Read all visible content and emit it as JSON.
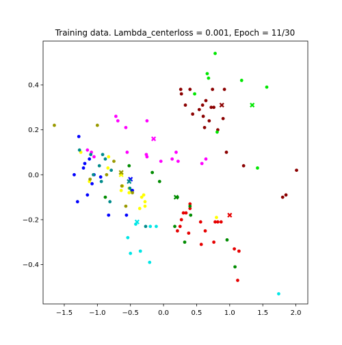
{
  "chart_data": {
    "type": "scatter",
    "title": "Training data. Lambda_centerloss = 0.001, Epoch = 11/30",
    "xlabel": "",
    "ylabel": "",
    "xlim": [
      -1.82,
      2.18
    ],
    "ylim": [
      -0.575,
      0.595
    ],
    "xticks": [
      -1.5,
      -1.0,
      -0.5,
      0.0,
      0.5,
      1.0,
      1.5,
      2.0
    ],
    "xtick_labels": [
      "−1.5",
      "−1.0",
      "−0.5",
      "0.0",
      "0.5",
      "1.0",
      "1.5",
      "2.0"
    ],
    "yticks": [
      -0.4,
      -0.2,
      0.0,
      0.2,
      0.4
    ],
    "ytick_labels": [
      "−0.4",
      "−0.2",
      "0.0",
      "0.2",
      "0.4"
    ],
    "grid": false,
    "series": [
      {
        "color": "#8b0000",
        "points": [
          [
            0.26,
            0.38
          ],
          [
            0.27,
            0.36
          ],
          [
            0.33,
            0.31
          ],
          [
            0.4,
            0.38
          ],
          [
            0.44,
            0.27
          ],
          [
            0.54,
            0.29
          ],
          [
            0.59,
            0.31
          ],
          [
            0.6,
            0.26
          ],
          [
            0.62,
            0.21
          ],
          [
            0.64,
            0.33
          ],
          [
            0.69,
            0.24
          ],
          [
            0.72,
            0.3
          ],
          [
            0.74,
            0.38
          ],
          [
            0.76,
            0.3
          ],
          [
            0.82,
            0.2
          ],
          [
            0.9,
            0.25
          ],
          [
            0.92,
            0.38
          ],
          [
            0.95,
            0.1
          ],
          [
            1.21,
            0.04
          ],
          [
            1.8,
            -0.1
          ],
          [
            1.85,
            -0.09
          ],
          [
            2.01,
            0.02
          ]
        ],
        "center": [
          0.88,
          0.31
        ]
      },
      {
        "color": "#00e600",
        "points": [
          [
            0.47,
            0.36
          ],
          [
            0.66,
            0.45
          ],
          [
            0.68,
            0.43
          ],
          [
            0.78,
            0.54
          ],
          [
            0.81,
            0.19
          ],
          [
            1.18,
            0.42
          ],
          [
            1.42,
            0.03
          ],
          [
            1.56,
            0.39
          ]
        ],
        "center": [
          1.34,
          0.31
        ]
      },
      {
        "color": "#e60000",
        "points": [
          [
            0.3,
            -0.17
          ],
          [
            0.34,
            -0.17
          ],
          [
            0.27,
            -0.2
          ],
          [
            0.25,
            -0.23
          ],
          [
            0.21,
            -0.25
          ],
          [
            0.38,
            -0.26
          ],
          [
            0.4,
            -0.13
          ],
          [
            0.4,
            -0.15
          ],
          [
            0.56,
            -0.21
          ],
          [
            0.57,
            -0.31
          ],
          [
            0.63,
            -0.25
          ],
          [
            0.78,
            -0.21
          ],
          [
            0.82,
            -0.21
          ],
          [
            0.87,
            -0.21
          ],
          [
            0.76,
            -0.3
          ],
          [
            1.07,
            -0.33
          ],
          [
            1.14,
            -0.34
          ],
          [
            1.12,
            -0.47
          ]
        ],
        "center": [
          1.0,
          -0.18
        ]
      },
      {
        "color": "#008b00",
        "points": [
          [
            -0.88,
            -0.1
          ],
          [
            -0.52,
            0.04
          ],
          [
            -0.48,
            -0.07
          ],
          [
            -0.17,
            0.01
          ],
          [
            -0.06,
            -0.03
          ],
          [
            0.17,
            -0.23
          ],
          [
            0.21,
            -0.1
          ],
          [
            0.32,
            -0.3
          ],
          [
            0.4,
            -0.14
          ],
          [
            0.41,
            -0.18
          ],
          [
            0.96,
            -0.29
          ],
          [
            1.08,
            -0.41
          ]
        ],
        "center": [
          0.19,
          -0.1
        ]
      },
      {
        "color": "#ff00ff",
        "points": [
          [
            -1.15,
            0.11
          ],
          [
            -1.09,
            0.1
          ],
          [
            -1.05,
            0.08
          ],
          [
            -0.72,
            0.26
          ],
          [
            -0.69,
            0.24
          ],
          [
            -0.57,
            0.21
          ],
          [
            -0.55,
            0.1
          ],
          [
            -0.25,
            0.24
          ],
          [
            -0.26,
            0.09
          ],
          [
            -0.25,
            0.08
          ],
          [
            -0.04,
            0.06
          ],
          [
            0.13,
            0.07
          ],
          [
            0.19,
            0.1
          ],
          [
            0.22,
            0.06
          ],
          [
            0.58,
            0.05
          ],
          [
            0.64,
            0.07
          ]
        ],
        "center": [
          -0.15,
          0.16
        ]
      },
      {
        "color": "#0000ff",
        "points": [
          [
            -1.35,
            0.0
          ],
          [
            -1.3,
            -0.12
          ],
          [
            -1.28,
            0.17
          ],
          [
            -1.21,
            0.03
          ],
          [
            -1.19,
            0.05
          ],
          [
            -1.15,
            -0.09
          ],
          [
            -1.12,
            0.07
          ],
          [
            -1.05,
            0.0
          ],
          [
            -1.08,
            -0.04
          ],
          [
            -0.95,
            -0.01
          ],
          [
            -0.83,
            -0.18
          ],
          [
            -0.56,
            -0.18
          ],
          [
            -0.47,
            -0.07
          ]
        ],
        "center": [
          -0.5,
          -0.02
        ]
      },
      {
        "color": "#ffff00",
        "points": [
          [
            -1.25,
            0.1
          ],
          [
            -1.12,
            -0.03
          ],
          [
            -0.83,
            0.08
          ],
          [
            -0.84,
            0.03
          ],
          [
            -0.64,
            -0.07
          ],
          [
            -0.62,
            -0.05
          ],
          [
            -0.52,
            -0.06
          ],
          [
            -0.52,
            -0.08
          ],
          [
            -0.36,
            -0.15
          ],
          [
            -0.33,
            -0.1
          ],
          [
            -0.3,
            -0.09
          ],
          [
            -0.28,
            -0.12
          ],
          [
            -0.28,
            -0.14
          ],
          [
            0.8,
            -0.19
          ]
        ],
        "center": [
          -0.64,
          0.0
        ]
      },
      {
        "color": "#008b8b",
        "points": [
          [
            -1.27,
            0.11
          ],
          [
            -1.1,
            0.09
          ],
          [
            -1.06,
            0.0
          ],
          [
            -0.97,
            0.04
          ],
          [
            -0.94,
            -0.03
          ],
          [
            -0.92,
            0.09
          ],
          [
            -0.88,
            0.07
          ],
          [
            -0.81,
            -0.12
          ],
          [
            -0.79,
            0.02
          ],
          [
            -0.51,
            -0.06
          ],
          [
            -0.27,
            -0.23
          ]
        ],
        "center": [
          -0.52,
          -0.03
        ]
      },
      {
        "color": "#00e6e6",
        "points": [
          [
            -0.54,
            -0.28
          ],
          [
            -0.5,
            -0.35
          ],
          [
            -0.42,
            -0.22
          ],
          [
            -0.35,
            -0.34
          ],
          [
            -0.21,
            -0.39
          ],
          [
            -0.2,
            -0.23
          ],
          [
            -0.11,
            -0.23
          ],
          [
            1.74,
            -0.53
          ]
        ],
        "center": [
          -0.4,
          -0.21
        ]
      },
      {
        "color": "#999900",
        "points": [
          [
            -1.65,
            0.22
          ],
          [
            -1.11,
            -0.02
          ],
          [
            -1.0,
            0.22
          ],
          [
            -0.86,
            0.0
          ],
          [
            -0.75,
            0.06
          ],
          [
            -0.63,
            -0.05
          ],
          [
            -0.57,
            -0.14
          ],
          [
            -0.47,
            -0.08
          ]
        ],
        "center": [
          -0.64,
          0.01
        ]
      }
    ]
  }
}
